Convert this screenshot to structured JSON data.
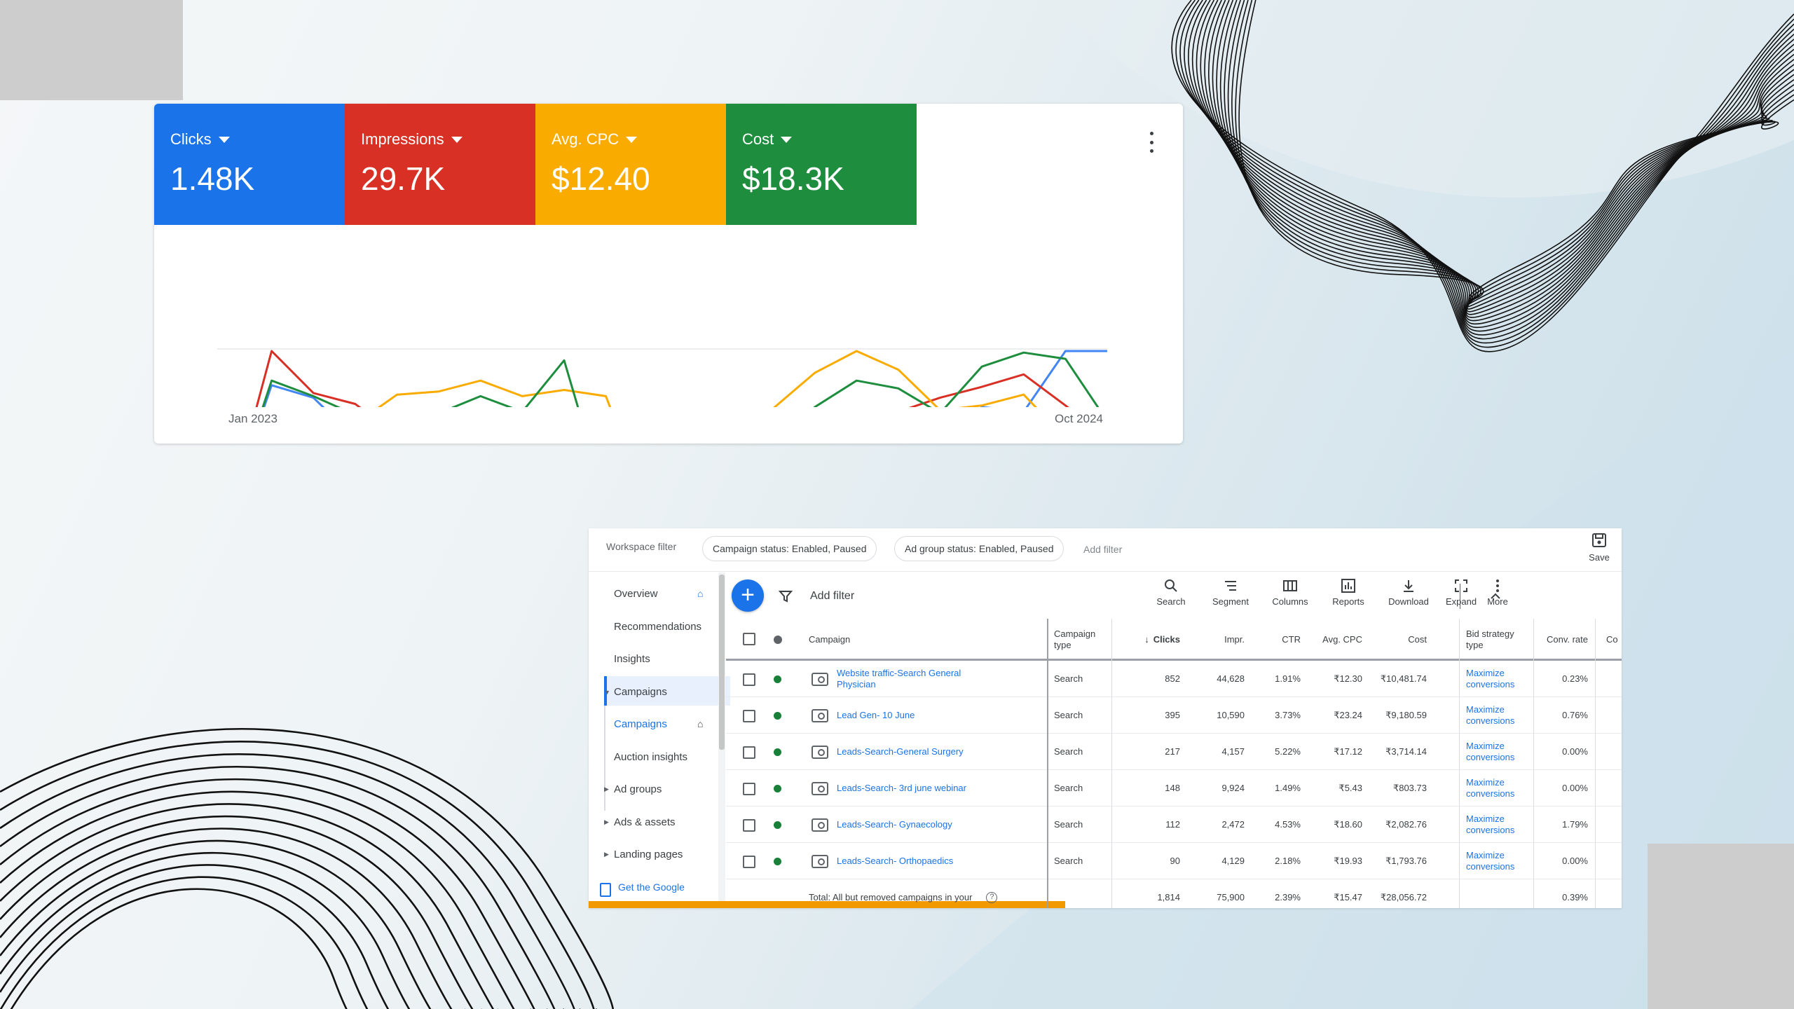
{
  "metrics": [
    {
      "label": "Clicks",
      "value": "1.48K",
      "color": "#1a73e8"
    },
    {
      "label": "Impressions",
      "value": "29.7K",
      "color": "#d93025"
    },
    {
      "label": "Avg. CPC",
      "value": "$12.40",
      "color": "#f9ab00"
    },
    {
      "label": "Cost",
      "value": "$18.3K",
      "color": "#1e8e3e"
    }
  ],
  "chart_data": {
    "type": "line",
    "x_start_label": "Jan 2023",
    "x_end_label": "Oct 2024",
    "y_range": [
      0,
      100
    ],
    "grid": true,
    "series": [
      {
        "metric": "Clicks",
        "color": "#4285f4",
        "values": [
          0,
          78,
          70,
          44,
          37,
          36,
          37,
          38,
          58,
          2,
          0,
          0,
          18,
          23,
          33,
          35,
          36,
          43,
          64,
          61,
          100,
          100
        ]
      },
      {
        "metric": "Impressions",
        "color": "#d93025",
        "values": [
          0,
          100,
          73,
          66,
          46,
          51,
          32,
          48,
          60,
          1,
          0,
          0,
          32,
          44,
          44,
          52,
          61,
          70,
          77,
          85,
          65,
          44
        ]
      },
      {
        "metric": "Avg. CPC",
        "color": "#f9ab00",
        "values": [
          0,
          47,
          45,
          53,
          72,
          74,
          81,
          71,
          75,
          71,
          0,
          0,
          50,
          63,
          86,
          100,
          88,
          62,
          65,
          72,
          44,
          25
        ]
      },
      {
        "metric": "Cost",
        "color": "#1e8e3e",
        "values": [
          0,
          81,
          71,
          59,
          60,
          60,
          71,
          61,
          94,
          3,
          0,
          0,
          23,
          37,
          64,
          81,
          76,
          60,
          90,
          99,
          95,
          55
        ]
      }
    ]
  },
  "workspace": {
    "label": "Workspace filter",
    "chips": [
      "Campaign status: Enabled, Paused",
      "Ad group status: Enabled, Paused"
    ],
    "add_filter": "Add filter",
    "save": "Save"
  },
  "nav": {
    "items": [
      "Overview",
      "Recommendations",
      "Insights",
      "Campaigns",
      "Campaigns",
      "Auction insights",
      "Ad groups",
      "Ads & assets",
      "Landing pages"
    ],
    "get_google": "Get the Google"
  },
  "toolbar": {
    "add_filter": "Add filter",
    "tools": [
      "Search",
      "Segment",
      "Columns",
      "Reports",
      "Download",
      "Expand",
      "More"
    ]
  },
  "table": {
    "headers": [
      "Campaign",
      "Campaign type",
      "Clicks",
      "Impr.",
      "CTR",
      "Avg. CPC",
      "Cost",
      "Bid strategy type",
      "Conv. rate",
      "Co"
    ],
    "rows": [
      {
        "campaign": "Website traffic-Search General Physician",
        "type": "Search",
        "clicks": "852",
        "impr": "44,628",
        "ctr": "1.91%",
        "cpc": "₹12.30",
        "cost": "₹10,481.74",
        "bid": "Maximize conversions",
        "conv": "0.23%"
      },
      {
        "campaign": "Lead Gen- 10 June",
        "type": "Search",
        "clicks": "395",
        "impr": "10,590",
        "ctr": "3.73%",
        "cpc": "₹23.24",
        "cost": "₹9,180.59",
        "bid": "Maximize conversions",
        "conv": "0.76%"
      },
      {
        "campaign": "Leads-Search-General Surgery",
        "type": "Search",
        "clicks": "217",
        "impr": "4,157",
        "ctr": "5.22%",
        "cpc": "₹17.12",
        "cost": "₹3,714.14",
        "bid": "Maximize conversions",
        "conv": "0.00%"
      },
      {
        "campaign": "Leads-Search- 3rd june webinar",
        "type": "Search",
        "clicks": "148",
        "impr": "9,924",
        "ctr": "1.49%",
        "cpc": "₹5.43",
        "cost": "₹803.73",
        "bid": "Maximize conversions",
        "conv": "0.00%"
      },
      {
        "campaign": "Leads-Search- Gynaecology",
        "type": "Search",
        "clicks": "112",
        "impr": "2,472",
        "ctr": "4.53%",
        "cpc": "₹18.60",
        "cost": "₹2,082.76",
        "bid": "Maximize conversions",
        "conv": "1.79%"
      },
      {
        "campaign": "Leads-Search- Orthopaedics",
        "type": "Search",
        "clicks": "90",
        "impr": "4,129",
        "ctr": "2.18%",
        "cpc": "₹19.93",
        "cost": "₹1,793.76",
        "bid": "Maximize conversions",
        "conv": "0.00%"
      }
    ],
    "total": {
      "label": "Total: All but removed campaigns in your",
      "clicks": "1,814",
      "impr": "75,900",
      "ctr": "2.39%",
      "cpc": "₹15.47",
      "cost": "₹28,056.72",
      "conv": "0.39%"
    }
  }
}
